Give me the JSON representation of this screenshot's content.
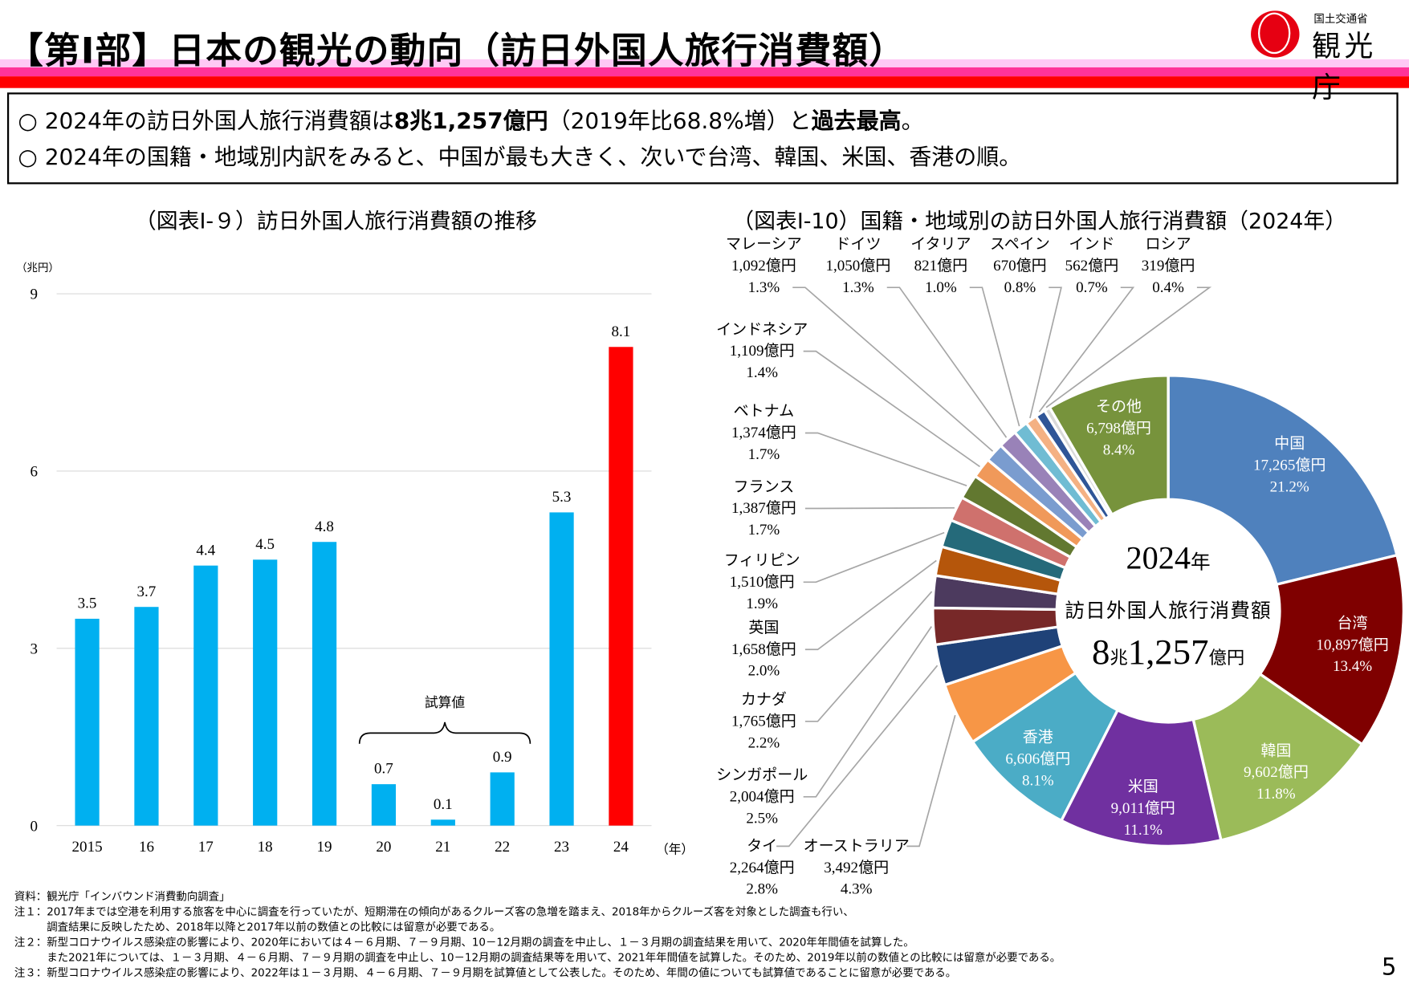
{
  "header": {
    "title": "【第Ⅰ部】日本の観光の動向（訪日外国人旅行消費額）",
    "logo_ministry": "国土交通省",
    "logo_name": "観光庁"
  },
  "summary": {
    "line1": {
      "a": "○ 2024年の訪日外国人旅行消費額は",
      "b": "8兆1,257億円",
      "c": "（2019年比68.8%増）と",
      "d": "過去最高",
      "e": "。"
    },
    "line2": "○ 2024年の国籍・地域別内訳をみると、中国が最も大きく、次いで台湾、韓国、米国、香港の順。"
  },
  "chart_data": [
    {
      "type": "bar",
      "title": "（図表Ⅰ-９）訪日外国人旅行消費額の推移",
      "ylabel": "（兆円）",
      "xlabel": "（年）",
      "categories": [
        "2015",
        "16",
        "17",
        "18",
        "19",
        "20",
        "21",
        "22",
        "23",
        "24"
      ],
      "values": [
        3.5,
        3.7,
        4.4,
        4.5,
        4.8,
        0.7,
        0.1,
        0.9,
        5.3,
        8.1
      ],
      "data_labels": [
        "3.5",
        "3.7",
        "4.4",
        "4.5",
        "4.8",
        "0.7",
        "0.1",
        "0.9",
        "5.3",
        "8.1"
      ],
      "yticks": [
        0,
        3,
        6,
        9
      ],
      "ylim": [
        0,
        9
      ],
      "grid": true,
      "bar_colors": [
        "#00b0f0",
        "#00b0f0",
        "#00b0f0",
        "#00b0f0",
        "#00b0f0",
        "#00b0f0",
        "#00b0f0",
        "#00b0f0",
        "#00b0f0",
        "#ff0000"
      ],
      "annotation": "試算値"
    },
    {
      "type": "pie",
      "title": "（図表Ⅰ-10）国籍・地域別の訪日外国人旅行消費額（2024年）",
      "center": {
        "year": "2024",
        "year_unit": "年",
        "label": "訪日外国人旅行消費額",
        "cho": "8",
        "cho_unit": "兆",
        "oku": "1,257",
        "oku_unit": "億円"
      },
      "slices": [
        {
          "name": "中国",
          "value": "17,265億円",
          "pct": 21.2,
          "pct_label": "21.2%",
          "color": "#4f81bd"
        },
        {
          "name": "台湾",
          "value": "10,897億円",
          "pct": 13.4,
          "pct_label": "13.4%",
          "color": "#7f0000"
        },
        {
          "name": "韓国",
          "value": "9,602億円",
          "pct": 11.8,
          "pct_label": "11.8%",
          "color": "#9bbb59"
        },
        {
          "name": "米国",
          "value": "9,011億円",
          "pct": 11.1,
          "pct_label": "11.1%",
          "color": "#7030a0"
        },
        {
          "name": "香港",
          "value": "6,606億円",
          "pct": 8.1,
          "pct_label": "8.1%",
          "color": "#4bacc6"
        },
        {
          "name": "オーストラリア",
          "value": "3,492億円",
          "pct": 4.3,
          "pct_label": "4.3%",
          "color": "#f79646"
        },
        {
          "name": "タイ",
          "value": "2,264億円",
          "pct": 2.8,
          "pct_label": "2.8%",
          "color": "#1f4278"
        },
        {
          "name": "シンガポール",
          "value": "2,004億円",
          "pct": 2.5,
          "pct_label": "2.5%",
          "color": "#772828"
        },
        {
          "name": "カナダ",
          "value": "1,765億円",
          "pct": 2.2,
          "pct_label": "2.2%",
          "color": "#4c3a5e"
        },
        {
          "name": "英国",
          "value": "1,658億円",
          "pct": 2.0,
          "pct_label": "2.0%",
          "color": "#b5560b"
        },
        {
          "name": "フィリピン",
          "value": "1,510億円",
          "pct": 1.9,
          "pct_label": "1.9%",
          "color": "#256a7a"
        },
        {
          "name": "フランス",
          "value": "1,387億円",
          "pct": 1.7,
          "pct_label": "1.7%",
          "color": "#cf716d"
        },
        {
          "name": "ベトナム",
          "value": "1,374億円",
          "pct": 1.7,
          "pct_label": "1.7%",
          "color": "#627830"
        },
        {
          "name": "インドネシア",
          "value": "1,109億円",
          "pct": 1.4,
          "pct_label": "1.4%",
          "color": "#f0995a"
        },
        {
          "name": "マレーシア",
          "value": "1,092億円",
          "pct": 1.3,
          "pct_label": "1.3%",
          "color": "#7a9ccf"
        },
        {
          "name": "ドイツ",
          "value": "1,050億円",
          "pct": 1.3,
          "pct_label": "1.3%",
          "color": "#9982b8"
        },
        {
          "name": "イタリア",
          "value": "821億円",
          "pct": 1.0,
          "pct_label": "1.0%",
          "color": "#70bcd3"
        },
        {
          "name": "スペイン",
          "value": "670億円",
          "pct": 0.8,
          "pct_label": "0.8%",
          "color": "#f4b183"
        },
        {
          "name": "インド",
          "value": "562億円",
          "pct": 0.7,
          "pct_label": "0.7%",
          "color": "#2f5597"
        },
        {
          "name": "ロシア",
          "value": "319億円",
          "pct": 0.4,
          "pct_label": "0.4%",
          "color": "#d9d9d9"
        },
        {
          "name": "その他",
          "value": "6,798億円",
          "pct": 8.4,
          "pct_label": "8.4%",
          "color": "#77933c"
        }
      ]
    }
  ],
  "footnotes": [
    "資料：観光庁「インバウンド消費動向調査」",
    "注１：2017年までは空港を利用する旅客を中心に調査を行っていたが、短期滞在の傾向があるクルーズ客の急増を踏まえ、2018年からクルーズ客を対象とした調査も行い、",
    "　　　調査結果に反映したため、2018年以降と2017年以前の数値との比較には留意が必要である。",
    "注２：新型コロナウイルス感染症の影響により、2020年においては４－６月期、７－９月期、10－12月期の調査を中止し、１－３月期の調査結果を用いて、2020年年間値を試算した。",
    "　　　また2021年については、１－３月期、４－６月期、７－９月期の調査を中止し、10－12月期の調査結果等を用いて、2021年年間値を試算した。そのため、2019年以前の数値との比較には留意が必要である。",
    "注３：新型コロナウイルス感染症の影響により、2022年は１－３月期、４－６月期、７－９月期を試算値として公表した。そのため、年間の値についても試算値であることに留意が必要である。"
  ],
  "page_number": "5"
}
